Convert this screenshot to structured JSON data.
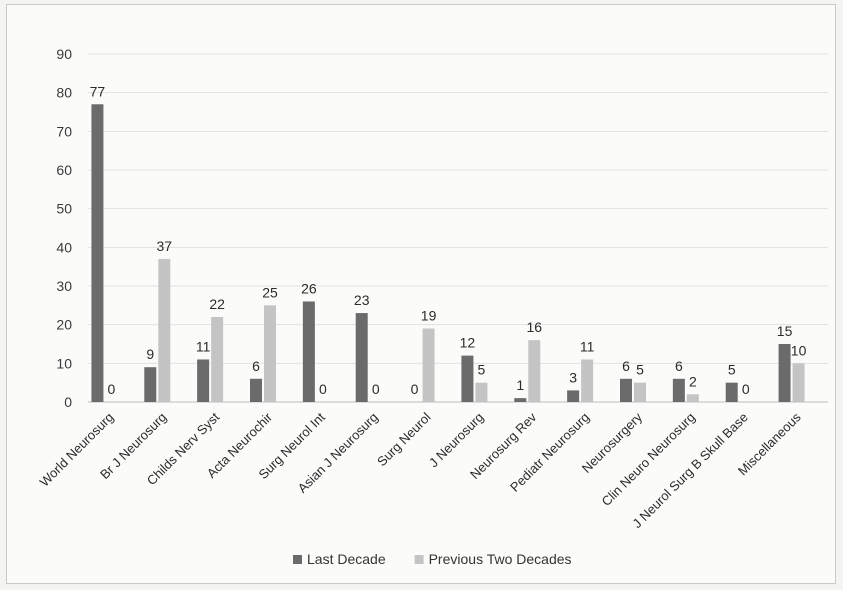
{
  "chart_data": {
    "type": "bar",
    "categories": [
      "World Neurosurg",
      "Br J Neurosurg",
      "Childs Nerv Syst",
      "Acta Neurochir",
      "Surg Neurol Int",
      "Asian J Neurosurg",
      "Surg Neurol",
      "J Neurosurg",
      "Neurosurg Rev",
      "Pediatr Neurosurg",
      "Neurosurgery",
      "Clin Neuro Neurosurg",
      "J Neurol Surg B Skull Base",
      "Miscellaneous"
    ],
    "series": [
      {
        "name": "Last Decade",
        "color": "#6b6b6b",
        "values": [
          77,
          9,
          11,
          6,
          26,
          23,
          0,
          12,
          1,
          3,
          6,
          6,
          5,
          15
        ]
      },
      {
        "name": "Previous Two Decades",
        "color": "#c4c4c4",
        "values": [
          0,
          37,
          22,
          25,
          0,
          0,
          19,
          5,
          16,
          11,
          5,
          2,
          0,
          10
        ]
      }
    ],
    "ylim": [
      0,
      90
    ],
    "yticks": [
      0,
      10,
      20,
      30,
      40,
      50,
      60,
      70,
      80,
      90
    ],
    "grid": true,
    "legend_position": "bottom",
    "title": "",
    "xlabel": "",
    "ylabel": ""
  }
}
